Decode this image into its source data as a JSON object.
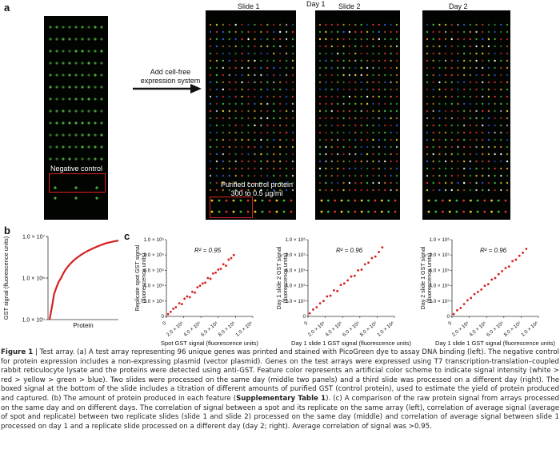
{
  "panel_a": {
    "letter": "a",
    "arrow_text_line1": "Add cell-free",
    "arrow_text_line2": "expression system",
    "day1_label": "Day 1",
    "slide1_label": "Slide 1",
    "slide2_label": "Slide 2",
    "day2_label": "Day 2",
    "negative_control": "Negative control",
    "purified_line1": "Purified control protein",
    "purified_line2": "300 to 0.5 µg/ml"
  },
  "panel_b": {
    "letter": "b",
    "ylabel": "GST signal (fluorescence units)",
    "xlabel": "Protein",
    "yticks": [
      "1.0 × 10⁷",
      "1.0 × 10⁶",
      "1.0 × 10⁵"
    ]
  },
  "panel_c": {
    "letter": "c",
    "plots": [
      {
        "r2": "R² = 0.95",
        "ylabel_line1": "Replicate spot GST signal",
        "ylabel_line2": "(fluorescence units)",
        "xlabel": "Spot GST signal (fluorescence units)"
      },
      {
        "r2": "R² = 0.96",
        "ylabel_line1": "Day 1 slide 2 GST signal",
        "ylabel_line2": "(fluorescence units)",
        "xlabel": "Day 1 slide 1 GST signal (fluorescence units)"
      },
      {
        "r2": "R² = 0.96",
        "ylabel_line1": "Day 2 slide 1 GST signal",
        "ylabel_line2": "(fluorescence units)",
        "xlabel": "Day 1 slide 1 GST signal (fluorescence units)"
      }
    ],
    "yticks": [
      "1.0 × 10⁶",
      "8.0 × 10⁵",
      "6.0 × 10⁵",
      "4.0 × 10⁵",
      "2.0 × 10⁵",
      "0"
    ],
    "xticks": [
      "0",
      "2.0 × 10⁵",
      "4.0 × 10⁵",
      "6.0 × 10⁵",
      "8.0 × 10⁵",
      "1.0 × 10⁶"
    ]
  },
  "caption": {
    "figure_label": "Figure 1",
    "title": "Test array.",
    "body": "(a) A test array representing 96 unique genes was printed and stained with PicoGreen dye to assay DNA binding (left). The negative control for protein expression includes a non-expressing plasmid (vector plasmid). Genes on the test arrays were expressed using T7 transcription-translation–coupled rabbit reticulocyte lysate and the proteins were detected using anti-GST. Feature color represents an artificial color scheme to indicate signal intensity (white > red > yellow > green > blue). Two slides were processed on the same day (middle two panels) and a third slide was processed on a different day (right). The boxed signal at the bottom of the slide includes a titration of different amounts of purified GST (control protein), used to estimate the yield of protein produced and captured. (b) The amount of protein produced in each feature (",
    "bold_ref": "Supplementary Table 1",
    "body2": "). (c) A comparison of the raw protein signal from arrays processed on the same day and on different days. The correlation of signal between a spot and its replicate on the same array (left), correlation of average signal (average of spot and replicate) between two replicate slides (slide 1 and slide 2) processed on the same day (middle) and correlation of average signal between slide 1 processed on day 1 and a replicate slide processed on a different day (day 2; right). Average correlation of signal was >0.95."
  },
  "chart_data": [
    {
      "type": "line",
      "title": "",
      "xlabel": "Protein",
      "ylabel": "GST signal (fluorescence units)",
      "yscale": "log",
      "ylim": [
        100000,
        10000000
      ],
      "series": [
        {
          "values": [
            100000,
            200000,
            420000,
            600000,
            820000,
            1000000,
            1300000,
            1600000,
            1900000,
            2200000,
            2500000,
            2800000,
            3100000,
            3400000,
            3700000,
            4000000,
            4300000,
            4600000,
            4900000,
            5200000,
            5500000,
            5800000,
            6100000,
            6400000,
            6700000,
            7000000,
            7200000,
            7400000,
            7600000,
            7800000,
            8000000
          ]
        }
      ],
      "color": "#d42020"
    },
    {
      "type": "scatter",
      "xlabel": "Spot GST signal (fluorescence units)",
      "ylabel": "Replicate spot GST signal (fluorescence units)",
      "xlim": [
        0,
        1000000
      ],
      "ylim": [
        0,
        1000000
      ],
      "annotation": "R² = 0.95",
      "x": [
        20000,
        50000,
        80000,
        110000,
        150000,
        180000,
        210000,
        240000,
        270000,
        300000,
        330000,
        360000,
        390000,
        420000,
        450000,
        480000,
        510000,
        540000,
        570000,
        600000,
        630000,
        660000,
        690000,
        720000,
        750000,
        780000
      ],
      "y": [
        30000,
        60000,
        100000,
        120000,
        170000,
        160000,
        230000,
        260000,
        250000,
        320000,
        310000,
        380000,
        400000,
        430000,
        440000,
        500000,
        490000,
        560000,
        570000,
        610000,
        620000,
        680000,
        660000,
        740000,
        760000,
        800000
      ]
    },
    {
      "type": "scatter",
      "xlabel": "Day 1 slide 1 GST signal (fluorescence units)",
      "ylabel": "Day 1 slide 2 GST signal (fluorescence units)",
      "xlim": [
        0,
        1000000
      ],
      "ylim": [
        0,
        1000000
      ],
      "annotation": "R² = 0.96",
      "x": [
        20000,
        60000,
        100000,
        140000,
        180000,
        220000,
        260000,
        300000,
        340000,
        380000,
        420000,
        460000,
        500000,
        540000,
        580000,
        620000,
        660000,
        700000,
        740000,
        780000,
        820000,
        860000
      ],
      "y": [
        40000,
        90000,
        120000,
        170000,
        200000,
        260000,
        270000,
        340000,
        330000,
        410000,
        430000,
        470000,
        520000,
        530000,
        600000,
        610000,
        680000,
        700000,
        760000,
        780000,
        840000,
        900000
      ]
    },
    {
      "type": "scatter",
      "xlabel": "Day 1 slide 1 GST signal (fluorescence units)",
      "ylabel": "Day 2 slide 1 GST signal (fluorescence units)",
      "xlim": [
        0,
        1000000
      ],
      "ylim": [
        0,
        1000000
      ],
      "annotation": "R² = 0.96",
      "x": [
        20000,
        60000,
        100000,
        140000,
        180000,
        220000,
        260000,
        300000,
        340000,
        380000,
        420000,
        460000,
        500000,
        540000,
        580000,
        620000,
        660000,
        700000,
        740000,
        780000,
        820000,
        860000
      ],
      "y": [
        30000,
        80000,
        110000,
        160000,
        210000,
        240000,
        290000,
        320000,
        350000,
        400000,
        420000,
        480000,
        500000,
        550000,
        590000,
        630000,
        650000,
        720000,
        740000,
        790000,
        830000,
        880000
      ]
    }
  ],
  "colors": {
    "accent_red": "#d42020",
    "slide_bg": "#020402",
    "spot_green": "#4caf3a"
  }
}
